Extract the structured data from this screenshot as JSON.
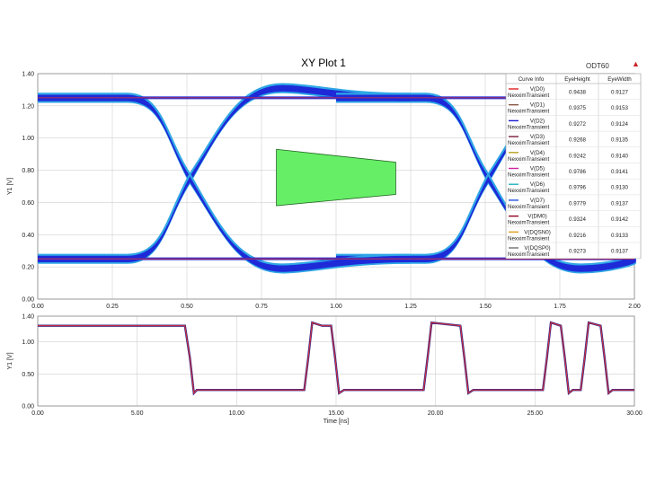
{
  "title": "XY Plot 1",
  "brand": "ODT60",
  "marker_icon": "triangle-marker-icon",
  "colors": {
    "grid": "#d0d0d0",
    "eye_main": "#1e2ad8",
    "eye_edge": "#2fa6e6",
    "mask_fill": "#66ee66",
    "ref_line": "#e83030"
  },
  "chart_data": [
    {
      "type": "line",
      "title": "XY Plot 1",
      "xlabel": "Time [ns]",
      "ylabel": "Y1 [V]",
      "xlim": [
        0,
        2
      ],
      "ylim": [
        0,
        1.4
      ],
      "xticks": [
        "0.00",
        "0.25",
        "0.50",
        "0.75",
        "1.00",
        "1.25",
        "1.50",
        "1.75",
        "2.00"
      ],
      "yticks": [
        "0.00",
        "0.20",
        "0.40",
        "0.60",
        "0.80",
        "1.00",
        "1.20",
        "1.40"
      ],
      "grid": true,
      "legend_position": "top-right",
      "eye": {
        "v_high": 1.25,
        "v_low": 0.25,
        "crossings": [
          0.5,
          1.5
        ],
        "overshoot_high": 1.31,
        "undershoot_low": 0.19
      },
      "mask": [
        [
          0.8,
          0.93
        ],
        [
          1.2,
          0.85
        ],
        [
          1.2,
          0.65
        ],
        [
          0.8,
          0.58
        ]
      ],
      "table": {
        "headers": [
          "Curve Info",
          "EyeHeight",
          "EyeWidth"
        ],
        "rows": [
          {
            "name": "V(D0)",
            "sub": "NexximTransient",
            "color": "#e02020",
            "eye_height": "0.9438",
            "eye_width": "0.9127"
          },
          {
            "name": "V(D1)",
            "sub": "NexximTransient",
            "color": "#8a5a44",
            "eye_height": "0.9375",
            "eye_width": "0.9153"
          },
          {
            "name": "V(D2)",
            "sub": "NexximTransient",
            "color": "#1a1ad0",
            "eye_height": "0.9272",
            "eye_width": "0.9124"
          },
          {
            "name": "V(D3)",
            "sub": "NexximTransient",
            "color": "#7a1a3a",
            "eye_height": "0.9268",
            "eye_width": "0.9135"
          },
          {
            "name": "V(D4)",
            "sub": "NexximTransient",
            "color": "#b8a020",
            "eye_height": "0.9242",
            "eye_width": "0.9140"
          },
          {
            "name": "V(D5)",
            "sub": "NexximTransient",
            "color": "#d020a0",
            "eye_height": "0.9786",
            "eye_width": "0.9141"
          },
          {
            "name": "V(D6)",
            "sub": "NexximTransient",
            "color": "#20b0c0",
            "eye_height": "0.9796",
            "eye_width": "0.9130"
          },
          {
            "name": "V(D7)",
            "sub": "NexximTransient",
            "color": "#2050e0",
            "eye_height": "0.9779",
            "eye_width": "0.9137"
          },
          {
            "name": "V(DM0)",
            "sub": "NexximTransient",
            "color": "#900020",
            "eye_height": "0.9324",
            "eye_width": "0.9142"
          },
          {
            "name": "V(DQSN0)",
            "sub": "NexximTransient",
            "color": "#e0a020",
            "eye_height": "0.9216",
            "eye_width": "0.9133"
          },
          {
            "name": "V(DQSP0)",
            "sub": "NexximTransient",
            "color": "#707070",
            "eye_height": "0.9273",
            "eye_width": "0.9137"
          }
        ]
      }
    },
    {
      "type": "line",
      "xlabel": "Time [ns]",
      "ylabel": "Y1 [V]",
      "xlim": [
        0,
        30
      ],
      "ylim": [
        0,
        1.4
      ],
      "xticks": [
        "0.00",
        "5.00",
        "10.00",
        "15.00",
        "20.00",
        "25.00",
        "30.00"
      ],
      "yticks": [
        "0.00",
        "0.50",
        "1.00",
        "1.40"
      ],
      "grid": true,
      "series": [
        {
          "x": [
            0,
            7.4,
            7.65,
            7.85,
            8.0,
            8.2,
            13.4,
            13.6,
            13.8,
            14.3,
            14.75,
            14.95,
            15.15,
            15.4,
            19.4,
            19.6,
            19.8,
            21.25,
            21.45,
            21.65,
            21.9,
            25.4,
            25.6,
            25.8,
            26.3,
            26.5,
            26.7,
            26.9,
            27.3,
            27.5,
            27.7,
            28.3,
            28.5,
            28.7,
            28.9,
            30
          ],
          "y": [
            1.25,
            1.25,
            0.75,
            0.2,
            0.25,
            0.25,
            0.25,
            0.75,
            1.3,
            1.25,
            1.25,
            0.75,
            0.2,
            0.25,
            0.25,
            0.75,
            1.3,
            1.25,
            0.75,
            0.2,
            0.25,
            0.25,
            0.75,
            1.3,
            1.25,
            0.75,
            0.2,
            0.25,
            0.25,
            0.75,
            1.3,
            1.25,
            0.75,
            0.2,
            0.25,
            0.25
          ]
        }
      ]
    }
  ]
}
